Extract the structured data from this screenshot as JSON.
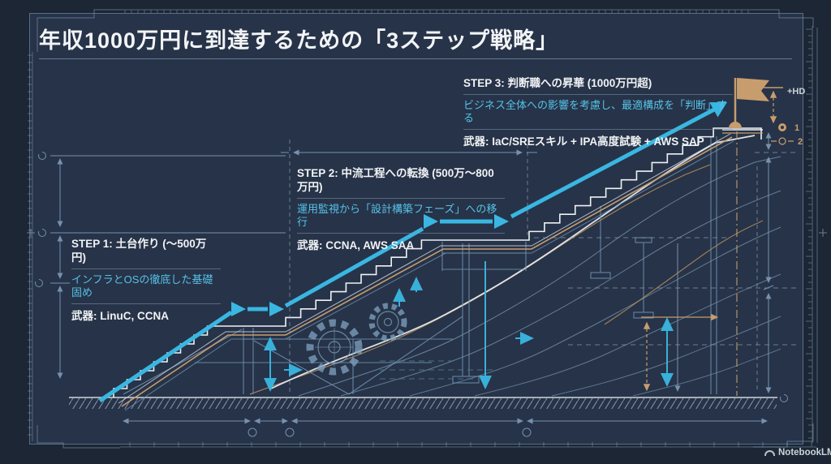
{
  "title": "年収1000万円に到達するための「3ステップ戦略」",
  "steps": [
    {
      "id": "STEP 1",
      "heading": "STEP 1: 土台作り (〜500万円)",
      "subtext": "インフラとOSの徹底した基礎固め",
      "weapons": "武器: LinuC, CCNA"
    },
    {
      "id": "STEP 2",
      "heading": "STEP 2: 中流工程への転換 (500万〜800万円)",
      "subtext": "運用監視から「設計構築フェーズ」への移行",
      "weapons": "武器: CCNA, AWS SAA"
    },
    {
      "id": "STEP 3",
      "heading": "STEP 3: 判断職への昇華 (1000万円超)",
      "subtext": "ビジネス全体への影響を考慮し、最適構成を「判断」する",
      "weapons": "武器: IaC/SREスキル + IPA高度試験 + AWS SAP"
    }
  ],
  "annotations": {
    "height_label": "+HD",
    "marker_1": "1",
    "marker_2": "2"
  },
  "watermark": {
    "label": "NotebookLM"
  },
  "colors": {
    "background": "#1c2634",
    "panel": "#273348",
    "accent_cyan": "#39b7e2",
    "cyan_text": "#55c3e8",
    "accent_tan": "#c79d6d",
    "line_blue": "#7e9cba",
    "drawing_white": "#ecf0f4"
  }
}
